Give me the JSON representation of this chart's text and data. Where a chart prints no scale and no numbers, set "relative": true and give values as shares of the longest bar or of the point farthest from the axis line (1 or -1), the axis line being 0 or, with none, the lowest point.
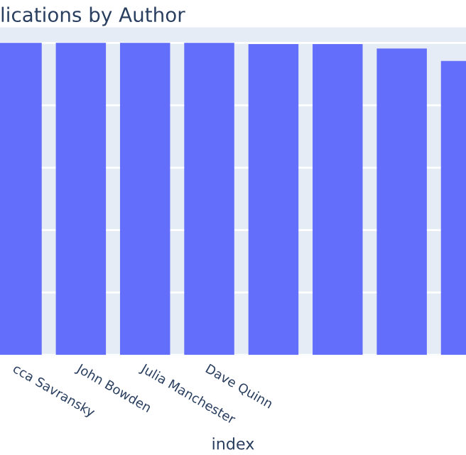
{
  "chart_data": {
    "type": "bar",
    "title": "lications by Author",
    "xlabel": "index",
    "categories": [
      "cca Savransky",
      "John Bowden",
      "Julia Manchester",
      "Dave Quinn",
      null,
      null,
      null,
      null
    ],
    "values": [
      1,
      1,
      1,
      1,
      0.996,
      0.996,
      0.982,
      0.942
    ],
    "color": "#636efa",
    "relative": true,
    "grid": "y"
  }
}
